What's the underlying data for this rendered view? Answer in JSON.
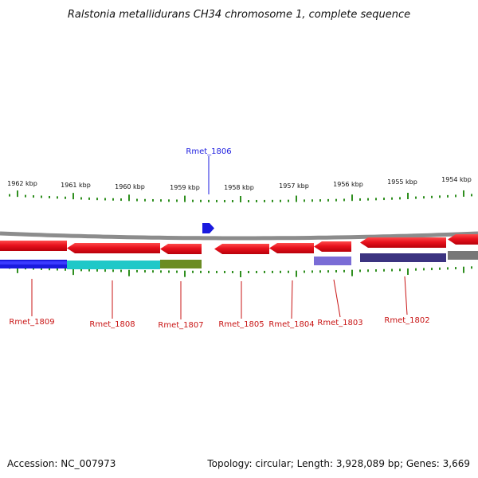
{
  "title": "Ralstonia metallidurans CH34 chromosome 1, complete sequence",
  "footer": {
    "accession": "Accession: NC_007973",
    "summary": "Topology: circular; Length: 3,928,089 bp; Genes: 3,669"
  },
  "colors": {
    "backbone": "#8c8c8c",
    "tick": "#2f8f1f",
    "forward_gene": "#1a1adf",
    "reverse_gene": "#e8121d",
    "label_forward": "#1a1adf",
    "label_reverse": "#c81414"
  },
  "kbp_labels": [
    "1962 kbp",
    "1961 kbp",
    "1960 kbp",
    "1959 kbp",
    "1958 kbp",
    "1957 kbp",
    "1956 kbp",
    "1955 kbp",
    "1954 kbp"
  ],
  "genes": [
    {
      "name": "Rmet_1806",
      "strand": "forward",
      "cog_color": "#1a1adf",
      "cog_color2": "#1a1adf"
    },
    {
      "name": "Rmet_1809",
      "strand": "reverse",
      "cog_color": "#1a1adf",
      "cog_color2": "#0a0ab4"
    },
    {
      "name": "Rmet_1808",
      "strand": "reverse",
      "cog_color": "#1fc8c8",
      "cog_color2": "#1fc8c8"
    },
    {
      "name": "Rmet_1807",
      "strand": "reverse",
      "cog_color": "#6b8c23",
      "cog_color2": "#6b8c23"
    },
    {
      "name": "Rmet_1805",
      "strand": "reverse",
      "cog_color": "",
      "cog_color2": ""
    },
    {
      "name": "Rmet_1804",
      "strand": "reverse",
      "cog_color": "",
      "cog_color2": ""
    },
    {
      "name": "Rmet_1803",
      "strand": "reverse",
      "cog_color": "#7a6cd6",
      "cog_color2": "#7a6cd6"
    },
    {
      "name": "Rmet_1802",
      "strand": "reverse",
      "cog_color": "#3b3380",
      "cog_color2": "#3b3380"
    }
  ]
}
